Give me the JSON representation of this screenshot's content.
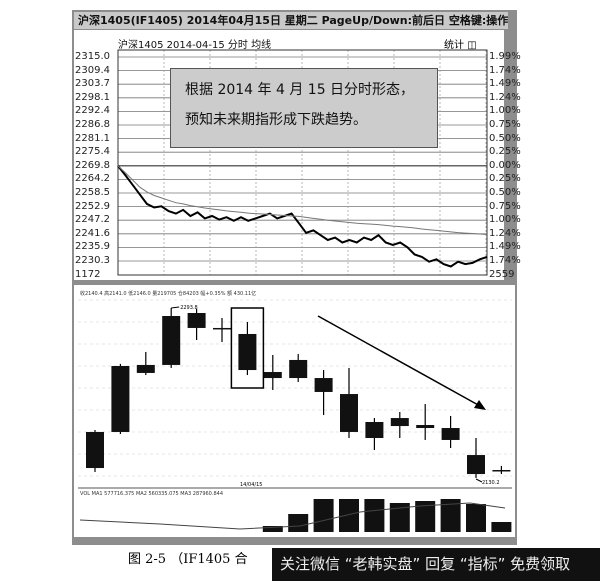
{
  "window": {
    "title": "沪深1405(IF1405) 2014年04月15日 星期二 PageUp/Down:前后日 空格键:操作"
  },
  "top_panel": {
    "subtitle": "沪深1405   2014-04-15 分时 均线",
    "stats_label": "统计",
    "left_ticks": [
      "2315.0",
      "2309.4",
      "2303.7",
      "2298.1",
      "2292.4",
      "2286.8",
      "2281.1",
      "2275.4",
      "2269.8",
      "2264.2",
      "2258.5",
      "2252.9",
      "2247.2",
      "2241.6",
      "2235.9",
      "2230.3",
      "1172"
    ],
    "right_ticks": [
      "1.99%",
      "1.74%",
      "1.49%",
      "1.24%",
      "1.00%",
      "0.75%",
      "0.50%",
      "0.25%",
      "0.00%",
      "0.25%",
      "0.50%",
      "0.75%",
      "1.00%",
      "1.24%",
      "1.49%",
      "1.74%",
      "2559"
    ],
    "annotation": [
      "根据 2014 年 4 月 15 日分时形态，",
      "预知未来期指形成下跌趋势。"
    ]
  },
  "bottom_panel": {
    "info_line": "收2140.4 高2141.0 低2146.0 量219705 仓84203 幅+0.35% 额 430.11亿",
    "volume_line": "VOL MA1 577716.375 MA2 560335.075 MA3 287960.844",
    "date_tag": "14/04/15"
  },
  "chart_data": [
    {
      "type": "line",
      "ylim": [
        2230.3,
        2315.0
      ],
      "grid": true,
      "series": [
        {
          "values": [
            2269.8,
            2266,
            2262,
            2258,
            2254,
            2252.5,
            2253,
            2251,
            2250,
            2251.5,
            2249,
            2250.5,
            2248,
            2249,
            2247.5,
            2248.5,
            2247,
            2248.5,
            2247,
            2248,
            2249,
            2250,
            2248,
            2249,
            2250,
            2246,
            2242,
            2243,
            2241,
            2239,
            2240,
            2238,
            2239,
            2238,
            2240,
            2239,
            2241,
            2238,
            2237,
            2238,
            2236,
            2233,
            2232,
            2230,
            2231,
            2229,
            2228,
            2230,
            2229,
            2229.5,
            2231,
            2232
          ]
        },
        {
          "values": [
            2269.8,
            2267,
            2264,
            2261,
            2259,
            2257.5,
            2256.5,
            2255.5,
            2254.5,
            2254,
            2253.3,
            2252.8,
            2252.3,
            2251.9,
            2251.5,
            2251.1,
            2250.8,
            2250.5,
            2250.2,
            2250,
            2249.8,
            2249.6,
            2249.4,
            2249.2,
            2249,
            2248.8,
            2248.4,
            2248,
            2247.6,
            2247.2,
            2246.9,
            2246.6,
            2246.3,
            2246,
            2245.8,
            2245.6,
            2245.4,
            2245.1,
            2244.8,
            2244.6,
            2244.3,
            2244,
            2243.6,
            2243.3,
            2243,
            2242.7,
            2242.4,
            2242.1,
            2241.9,
            2241.7,
            2241.5,
            2241.3
          ]
        }
      ]
    },
    {
      "type": "candlestick",
      "annotations": {
        "high_label": "2293.8",
        "low_label": "2130.2",
        "highlighted_candle": 7,
        "trend_arrow": "down"
      },
      "candles": [
        {
          "o": 2174.5,
          "h": 2176.4,
          "l": 2136.0,
          "c": 2139.8
        },
        {
          "o": 2238.0,
          "h": 2240.0,
          "l": 2172.5,
          "c": 2174.5
        },
        {
          "o": 2239.0,
          "h": 2251.5,
          "l": 2229.3,
          "c": 2231.3
        },
        {
          "o": 2286.1,
          "h": 2293.8,
          "l": 2236.1,
          "c": 2239.0
        },
        {
          "o": 2289.0,
          "h": 2293.0,
          "l": 2263.0,
          "c": 2274.6
        },
        {
          "o": 2274.6,
          "h": 2284.2,
          "l": 2261.1,
          "c": 2274.6
        },
        {
          "o": 2268.8,
          "h": 2280.3,
          "l": 2229.3,
          "c": 2234.1
        },
        {
          "o": 2232.2,
          "h": 2248.6,
          "l": 2214.9,
          "c": 2226.4
        },
        {
          "o": 2243.8,
          "h": 2249.5,
          "l": 2222.6,
          "c": 2226.4
        },
        {
          "o": 2226.4,
          "h": 2234.1,
          "l": 2190.8,
          "c": 2213.0
        },
        {
          "o": 2211.0,
          "h": 2236.1,
          "l": 2168.7,
          "c": 2174.5
        },
        {
          "o": 2184.1,
          "h": 2187.9,
          "l": 2157.1,
          "c": 2168.7
        },
        {
          "o": 2187.9,
          "h": 2193.7,
          "l": 2168.7,
          "c": 2180.2
        },
        {
          "o": 2181.2,
          "h": 2201.4,
          "l": 2166.8,
          "c": 2178.3
        },
        {
          "o": 2178.3,
          "h": 2189.9,
          "l": 2159.1,
          "c": 2166.8
        },
        {
          "o": 2152.3,
          "h": 2168.7,
          "l": 2130.2,
          "c": 2134.0
        },
        {
          "o": 2137.9,
          "h": 2141.8,
          "l": 2134.0,
          "c": 2136.9
        }
      ]
    },
    {
      "type": "bar",
      "values": [
        0,
        0,
        0,
        0,
        0,
        0,
        0,
        6,
        18,
        33,
        33,
        33,
        29,
        31,
        33,
        28,
        10
      ]
    }
  ],
  "caption": {
    "text": "图 2-5 （IF1405 合"
  },
  "watermark": {
    "text": "关注微信 “老韩实盘” 回复 “指标” 免费领取"
  }
}
